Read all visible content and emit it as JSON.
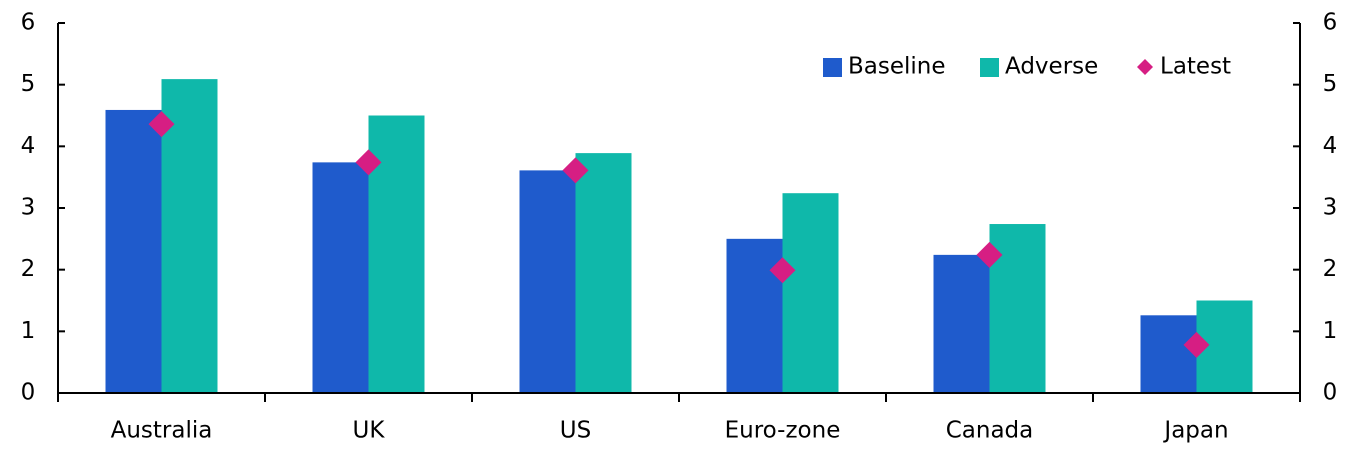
{
  "chart_data": {
    "type": "bar",
    "categories": [
      "Australia",
      "UK",
      "US",
      "Euro-zone",
      "Canada",
      "Japan"
    ],
    "series": [
      {
        "name": "Baseline",
        "color": "#1f5bcc",
        "values": [
          4.59,
          3.74,
          3.61,
          2.5,
          2.24,
          1.26
        ]
      },
      {
        "name": "Adverse",
        "color": "#0fb8aa",
        "values": [
          5.09,
          4.5,
          3.89,
          3.24,
          2.74,
          1.5
        ]
      },
      {
        "name": "Latest",
        "color": "#d61e83",
        "marker": "diamond",
        "values": [
          4.36,
          3.74,
          3.61,
          1.99,
          2.24,
          0.78
        ]
      }
    ],
    "ylim": [
      0,
      6
    ],
    "yticks": [
      0,
      1,
      2,
      3,
      4,
      5,
      6
    ],
    "y2lim": [
      0,
      6
    ],
    "y2ticks": [
      0,
      1,
      2,
      3,
      4,
      5,
      6
    ],
    "legend": "upper right"
  }
}
